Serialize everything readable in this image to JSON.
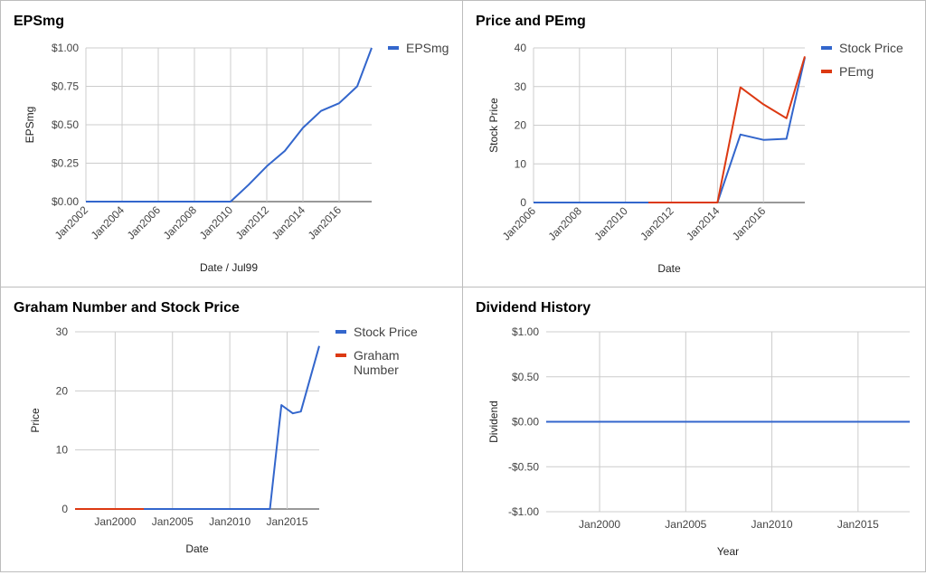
{
  "colors": {
    "blue": "#3366cc",
    "red": "#dc3912",
    "grid": "#cccccc",
    "axis": "#333333"
  },
  "chart_data": [
    {
      "id": "eps",
      "type": "line",
      "title": "EPSmg",
      "xlabel": "Date / Jul99",
      "ylabel": "EPSmg",
      "x_ticks": [
        "Jan2002",
        "Jan2004",
        "Jan2006",
        "Jan2008",
        "Jan2010",
        "Jan2012",
        "Jan2014",
        "Jan2016"
      ],
      "x_tick_values": [
        2002,
        2004,
        2006,
        2008,
        2010,
        2012,
        2014,
        2016
      ],
      "xlim": [
        2002,
        2017.8
      ],
      "y_ticks": [
        "$0.00",
        "$0.25",
        "$0.50",
        "$0.75",
        "$1.00"
      ],
      "y_tick_values": [
        0,
        0.25,
        0.5,
        0.75,
        1.0
      ],
      "ylim": [
        0,
        1.0
      ],
      "legend_position": "right",
      "series": [
        {
          "name": "EPSmg",
          "color": "#3366cc",
          "x": [
            2002,
            2010,
            2011,
            2012,
            2013,
            2014,
            2015,
            2016,
            2017,
            2017.8
          ],
          "values": [
            0,
            0,
            0.11,
            0.23,
            0.33,
            0.48,
            0.59,
            0.64,
            0.75,
            1.0
          ]
        }
      ]
    },
    {
      "id": "price",
      "type": "line",
      "title": "Price and PEmg",
      "xlabel": "Date",
      "ylabel": "Stock Price",
      "x_ticks": [
        "Jan2006",
        "Jan2008",
        "Jan2010",
        "Jan2012",
        "Jan2014",
        "Jan2016"
      ],
      "x_tick_values": [
        2006,
        2008,
        2010,
        2012,
        2014,
        2016
      ],
      "xlim": [
        2006,
        2017.8
      ],
      "y_ticks": [
        "0",
        "10",
        "20",
        "30",
        "40"
      ],
      "y_tick_values": [
        0,
        10,
        20,
        30,
        40
      ],
      "ylim": [
        0,
        40
      ],
      "legend_position": "right",
      "series": [
        {
          "name": "Stock Price",
          "color": "#3366cc",
          "x": [
            2006,
            2014,
            2015,
            2016,
            2017,
            2017.8
          ],
          "values": [
            0,
            0,
            17.6,
            16.2,
            16.5,
            37.5
          ]
        },
        {
          "name": "PEmg",
          "color": "#dc3912",
          "x": [
            2011,
            2014,
            2015,
            2016,
            2017,
            2017.8
          ],
          "values": [
            0,
            0,
            29.8,
            25.4,
            21.8,
            37.8
          ]
        }
      ]
    },
    {
      "id": "graham",
      "type": "line",
      "title": "Graham Number and Stock Price",
      "xlabel": "Date",
      "ylabel": "Price",
      "x_ticks": [
        "Jan2000",
        "Jan2005",
        "Jan2010",
        "Jan2015"
      ],
      "x_tick_values": [
        2000,
        2005,
        2010,
        2015
      ],
      "xlim": [
        1996.5,
        2017.8
      ],
      "y_ticks": [
        "0",
        "10",
        "20",
        "30"
      ],
      "y_tick_values": [
        0,
        10,
        20,
        30
      ],
      "ylim": [
        0,
        30
      ],
      "legend_position": "right",
      "series": [
        {
          "name": "Stock Price",
          "color": "#3366cc",
          "x": [
            1996.5,
            2012.5,
            2013.5,
            2014.5,
            2015.5,
            2016.2,
            2017.8
          ],
          "values": [
            0,
            0,
            0,
            17.6,
            16.2,
            16.5,
            27.6
          ]
        },
        {
          "name": "Graham Number",
          "color": "#dc3912",
          "x": [
            1996.5,
            2002.5
          ],
          "values": [
            0,
            0
          ]
        }
      ]
    },
    {
      "id": "dividend",
      "type": "line",
      "title": "Dividend History",
      "xlabel": "Year",
      "ylabel": "Dividend",
      "x_ticks": [
        "Jan2000",
        "Jan2005",
        "Jan2010",
        "Jan2015"
      ],
      "x_tick_values": [
        2000,
        2005,
        2010,
        2015
      ],
      "xlim": [
        1996.9,
        2018
      ],
      "y_ticks": [
        "-$1.00",
        "-$0.50",
        "$0.00",
        "$0.50",
        "$1.00"
      ],
      "y_tick_values": [
        -1,
        -0.5,
        0,
        0.5,
        1
      ],
      "ylim": [
        -1,
        1
      ],
      "legend_position": "none",
      "series": [
        {
          "name": "Dividend",
          "color": "#3366cc",
          "x": [
            1996.9,
            2018
          ],
          "values": [
            0,
            0
          ]
        }
      ]
    }
  ]
}
